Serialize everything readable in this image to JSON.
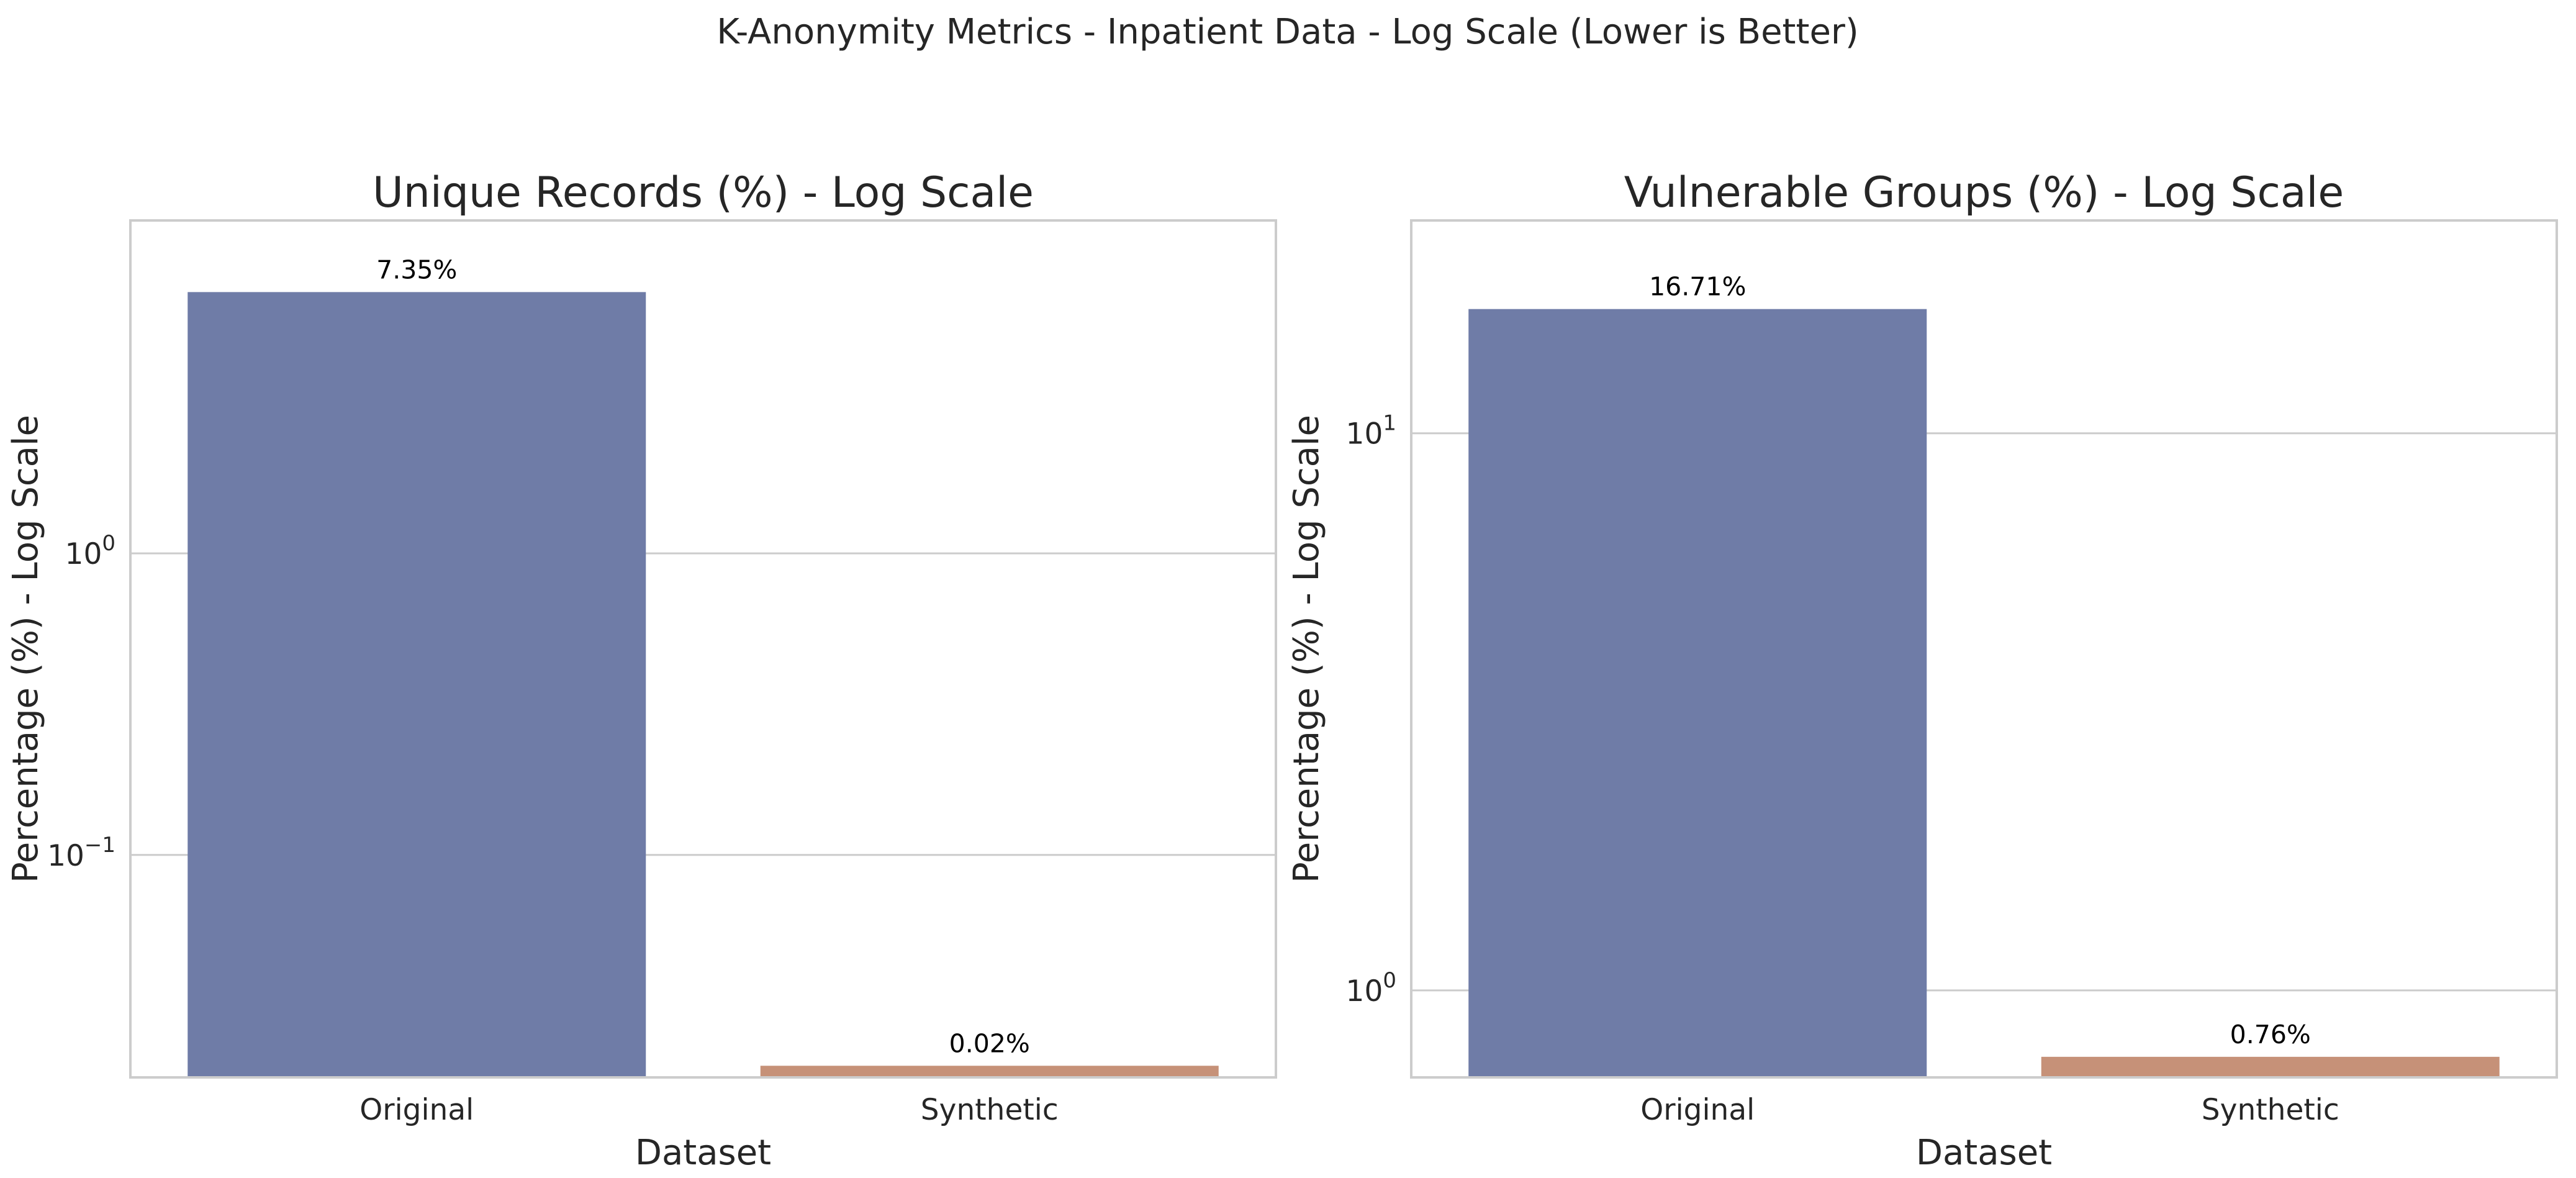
{
  "figure": {
    "suptitle": "K-Anonymity Metrics - Inpatient Data - Log Scale (Lower is Better)"
  },
  "colors": {
    "original": "#6f7ca7",
    "synthetic": "#c69178",
    "grid": "#cccccc",
    "text": "#262626"
  },
  "chart_data": [
    {
      "type": "bar",
      "title": "Unique Records (%) - Log Scale",
      "xlabel": "Dataset",
      "ylabel": "Percentage (%) - Log Scale",
      "yscale": "log",
      "ylim": [
        0.0183,
        12.7
      ],
      "grid": true,
      "categories": [
        "Original",
        "Synthetic"
      ],
      "values": [
        7.35,
        0.02
      ],
      "data_labels": [
        "7.35%",
        "0.02%"
      ],
      "yticks": [
        {
          "value": 0.1,
          "base": "10",
          "exp": "−1"
        },
        {
          "value": 1,
          "base": "10",
          "exp": "0"
        }
      ]
    },
    {
      "type": "bar",
      "title": "Vulnerable Groups (%) - Log Scale",
      "xlabel": "Dataset",
      "ylabel": "Percentage (%) - Log Scale",
      "yscale": "log",
      "ylim": [
        0.698,
        24.1
      ],
      "grid": true,
      "categories": [
        "Original",
        "Synthetic"
      ],
      "values": [
        16.71,
        0.76
      ],
      "data_labels": [
        "16.71%",
        "0.76%"
      ],
      "yticks": [
        {
          "value": 1,
          "base": "10",
          "exp": "0"
        },
        {
          "value": 10,
          "base": "10",
          "exp": "1"
        }
      ]
    }
  ]
}
